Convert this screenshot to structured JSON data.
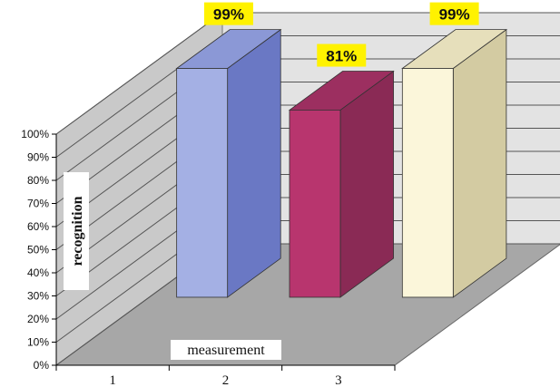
{
  "chart_data": {
    "type": "bar",
    "categories": [
      "1",
      "2",
      "3"
    ],
    "values": [
      99,
      81,
      99
    ],
    "data_labels": [
      "99%",
      "81%",
      "99%"
    ],
    "value_unit": "%",
    "xlabel": "measurement",
    "ylabel": "recognition",
    "ylim": [
      0,
      100
    ],
    "yticks": [
      "0%",
      "10%",
      "20%",
      "30%",
      "40%",
      "50%",
      "60%",
      "70%",
      "80%",
      "90%",
      "100%"
    ],
    "grid": true,
    "style": "3d-column",
    "colors": {
      "bars": [
        {
          "front": "#a4b0e4",
          "side": "#6a78c4",
          "top": "#8b98d6"
        },
        {
          "front": "#b8356e",
          "side": "#8a2a55",
          "top": "#9c2f60"
        },
        {
          "front": "#fbf6da",
          "side": "#d3cba2",
          "top": "#e6dfbb"
        }
      ],
      "label_bg": "#fff200",
      "wall": "#e3e3e3",
      "floor": "#a7a7a7",
      "gridline": "#555555"
    }
  }
}
